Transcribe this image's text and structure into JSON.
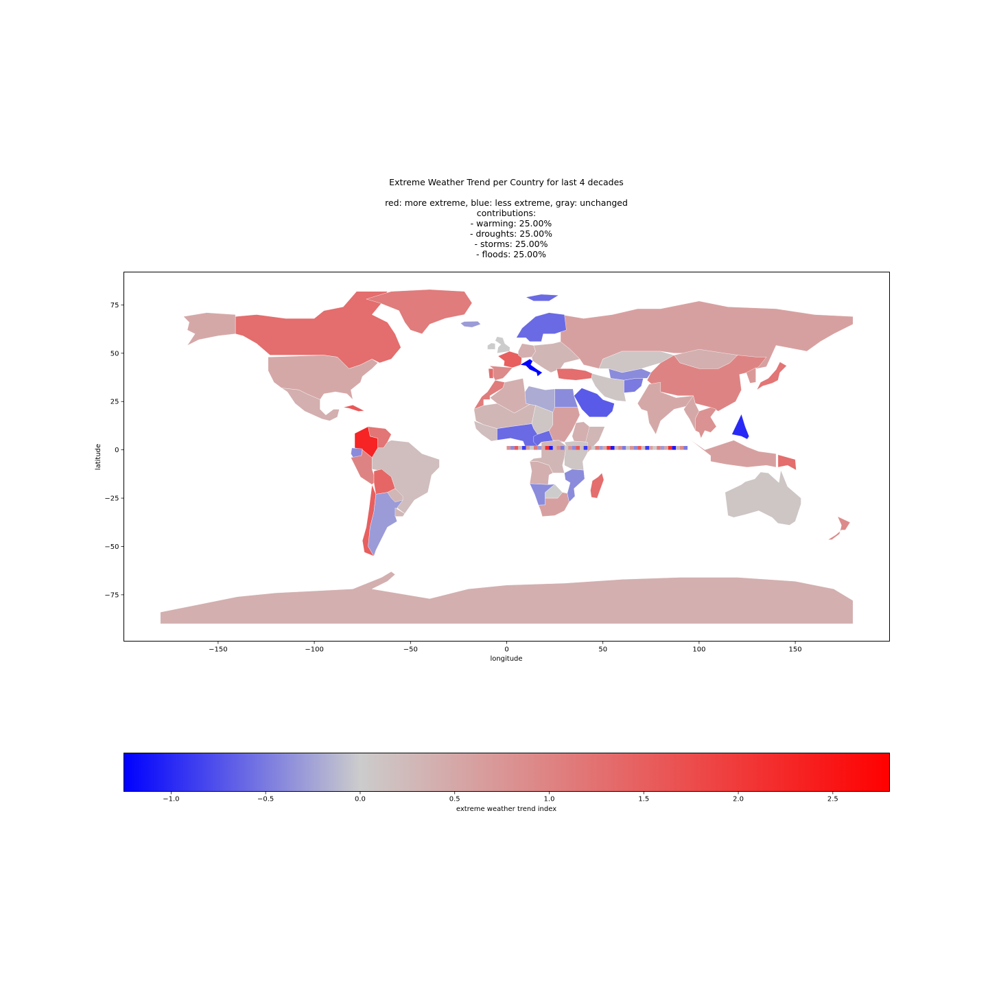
{
  "chart_data": {
    "type": "choropleth",
    "title_lines": [
      "Extreme Weather Trend per Country for last 4 decades",
      "",
      "red: more extreme, blue: less extreme, gray: unchanged",
      "contributions:",
      "- warming: 25.00%",
      "- droughts: 25.00%",
      "- storms: 25.00%",
      "- floods: 25.00%"
    ],
    "xlabel": "longitude",
    "ylabel": "latitude",
    "xlim": [
      -199,
      199
    ],
    "ylim": [
      -99,
      92
    ],
    "xticks": [
      -150,
      -100,
      -50,
      0,
      50,
      100,
      150
    ],
    "xtick_labels": [
      "−150",
      "−100",
      "−50",
      "0",
      "50",
      "100",
      "150"
    ],
    "yticks": [
      75,
      50,
      25,
      0,
      -25,
      -50,
      -75
    ],
    "ytick_labels": [
      "75",
      "50",
      "25",
      "0",
      "−25",
      "−50",
      "−75"
    ],
    "colorbar": {
      "label": "extreme weather trend index",
      "range": [
        -1.25,
        2.8
      ],
      "ticks": [
        -1.0,
        -0.5,
        0.0,
        0.5,
        1.0,
        1.5,
        2.0,
        2.5
      ],
      "tick_labels": [
        "−1.0",
        "−0.5",
        "0.0",
        "0.5",
        "1.0",
        "1.5",
        "2.0",
        "2.5"
      ],
      "colors": [
        "#0000ff",
        "#cccccc",
        "#ff0000"
      ]
    },
    "regions": [
      {
        "name": "Canada",
        "value": 1.3
      },
      {
        "name": "Alaska",
        "value": 0.5
      },
      {
        "name": "United States",
        "value": 0.5
      },
      {
        "name": "Greenland",
        "value": 1.1
      },
      {
        "name": "Mexico",
        "value": 0.4
      },
      {
        "name": "Cuba",
        "value": 1.6
      },
      {
        "name": "Colombia",
        "value": 2.3
      },
      {
        "name": "Venezuela",
        "value": 1.2
      },
      {
        "name": "Ecuador",
        "value": -0.4
      },
      {
        "name": "Peru",
        "value": 1.0
      },
      {
        "name": "Brazil",
        "value": 0.2
      },
      {
        "name": "Bolivia",
        "value": 1.4
      },
      {
        "name": "Chile",
        "value": 1.5
      },
      {
        "name": "Argentina",
        "value": -0.3
      },
      {
        "name": "Paraguay",
        "value": 0.3
      },
      {
        "name": "Uruguay",
        "value": 0.3
      },
      {
        "name": "Russia",
        "value": 0.6
      },
      {
        "name": "Scandinavia",
        "value": -0.6
      },
      {
        "name": "Svalbard",
        "value": -0.6
      },
      {
        "name": "Iceland",
        "value": -0.3
      },
      {
        "name": "Ireland",
        "value": 0.0
      },
      {
        "name": "United Kingdom",
        "value": 0.0
      },
      {
        "name": "France",
        "value": 1.5
      },
      {
        "name": "Spain",
        "value": 0.9
      },
      {
        "name": "Portugal",
        "value": 1.3
      },
      {
        "name": "Germany",
        "value": 0.4
      },
      {
        "name": "Italy",
        "value": -1.25
      },
      {
        "name": "Eastern Europe",
        "value": 0.3
      },
      {
        "name": "Turkey",
        "value": 1.3
      },
      {
        "name": "Kazakhstan",
        "value": 0.1
      },
      {
        "name": "Central Asia",
        "value": -0.4
      },
      {
        "name": "Mongolia",
        "value": 0.4
      },
      {
        "name": "China",
        "value": 1.0
      },
      {
        "name": "Korea",
        "value": 0.7
      },
      {
        "name": "Japan",
        "value": 1.2
      },
      {
        "name": "Iran",
        "value": 0.1
      },
      {
        "name": "Saudi Arabia",
        "value": -0.7
      },
      {
        "name": "Afghanistan",
        "value": -0.5
      },
      {
        "name": "India",
        "value": 0.5
      },
      {
        "name": "Myanmar",
        "value": 0.5
      },
      {
        "name": "Indochina",
        "value": 0.8
      },
      {
        "name": "Philippines",
        "value": -1.0
      },
      {
        "name": "Indonesia",
        "value": 0.6
      },
      {
        "name": "Papua New Guinea",
        "value": 1.3
      },
      {
        "name": "Australia",
        "value": 0.1
      },
      {
        "name": "New Zealand",
        "value": 0.9
      },
      {
        "name": "Morocco",
        "value": 1.1
      },
      {
        "name": "Algeria",
        "value": 0.4
      },
      {
        "name": "Libya",
        "value": -0.2
      },
      {
        "name": "Egypt",
        "value": -0.4
      },
      {
        "name": "Sahel",
        "value": 0.3
      },
      {
        "name": "Chad",
        "value": 0.1
      },
      {
        "name": "Sudan",
        "value": 0.6
      },
      {
        "name": "Ethiopia",
        "value": 0.4
      },
      {
        "name": "Somalia",
        "value": 0.3
      },
      {
        "name": "West Africa",
        "value": 0.2
      },
      {
        "name": "Gulf of Guinea",
        "value": -0.6
      },
      {
        "name": "Central Africa",
        "value": -0.6
      },
      {
        "name": "DR Congo",
        "value": 0.3
      },
      {
        "name": "East Africa",
        "value": 0.1
      },
      {
        "name": "Angola",
        "value": 0.4
      },
      {
        "name": "Namibia",
        "value": -0.4
      },
      {
        "name": "Botswana",
        "value": 0.0
      },
      {
        "name": "South Africa",
        "value": 0.6
      },
      {
        "name": "Mozambique",
        "value": -0.4
      },
      {
        "name": "Madagascar",
        "value": 1.3
      },
      {
        "name": "Antarctica",
        "value": 0.4
      }
    ]
  }
}
